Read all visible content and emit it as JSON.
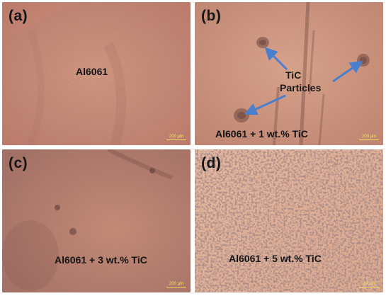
{
  "panels": {
    "a": {
      "label": "(a)",
      "caption": "Al6061",
      "scale": "200 µm"
    },
    "b": {
      "label": "(b)",
      "caption": "Al6061 + 1 wt.% TiC",
      "scale": "200 µm",
      "annotation_line1": "TiC",
      "annotation_line2": "Particles"
    },
    "c": {
      "label": "(c)",
      "caption": "Al6061 + 3 wt.% TiC",
      "scale": "200 µm"
    },
    "d": {
      "label": "(d)",
      "caption": "Al6061 + 5 wt.% TiC",
      "scale": "10 µm"
    }
  },
  "colors": {
    "micrograph_base": "#c98a72",
    "micrograph_light": "#e2b49d",
    "micrograph_dark": "#7a5048",
    "arrow": "#4a7fcf",
    "scalebar": "#f1e064",
    "text": "#141414"
  }
}
